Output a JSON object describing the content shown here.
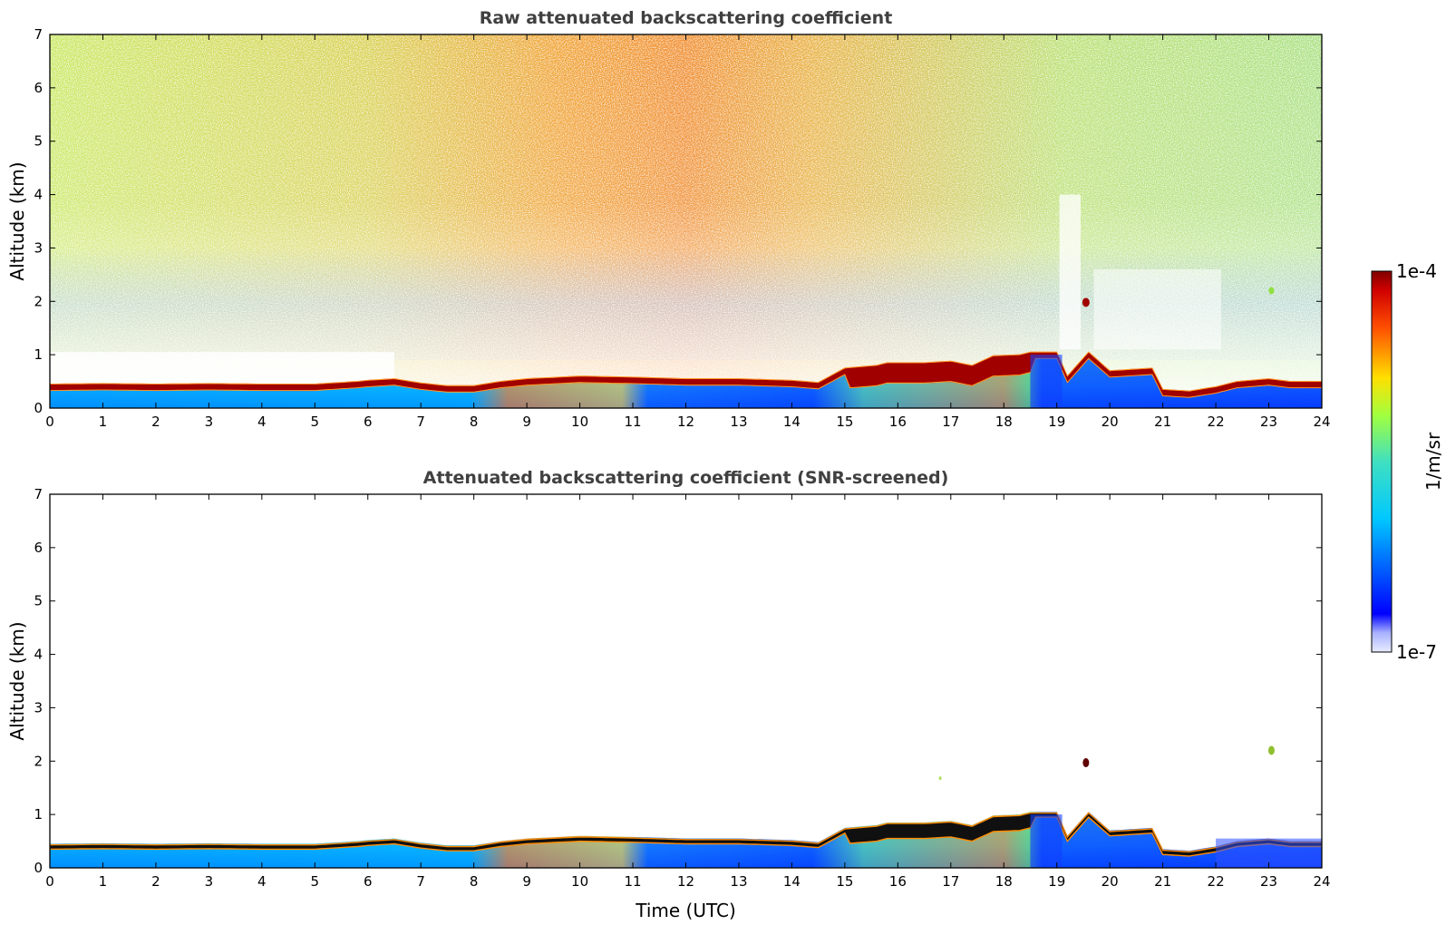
{
  "chart_data": [
    {
      "type": "heatmap",
      "title": "Raw attenuated backscattering coefficient",
      "xlabel": "",
      "ylabel": "Altitude (km)",
      "xlim": [
        0,
        24
      ],
      "ylim": [
        0,
        7
      ],
      "xticks": [
        "0",
        "1",
        "2",
        "3",
        "4",
        "5",
        "6",
        "7",
        "8",
        "9",
        "10",
        "11",
        "12",
        "13",
        "14",
        "15",
        "16",
        "17",
        "18",
        "19",
        "20",
        "21",
        "22",
        "23",
        "24"
      ],
      "yticks": [
        "0",
        "1",
        "2",
        "3",
        "4",
        "5",
        "6",
        "7"
      ],
      "layer_top_km": [
        [
          0,
          0.45
        ],
        [
          1,
          0.46
        ],
        [
          2,
          0.45
        ],
        [
          3,
          0.46
        ],
        [
          4,
          0.45
        ],
        [
          5,
          0.45
        ],
        [
          5.8,
          0.5
        ],
        [
          6,
          0.52
        ],
        [
          6.5,
          0.55
        ],
        [
          7,
          0.47
        ],
        [
          7.5,
          0.42
        ],
        [
          8,
          0.42
        ],
        [
          8.5,
          0.5
        ],
        [
          9,
          0.55
        ],
        [
          10,
          0.6
        ],
        [
          11,
          0.58
        ],
        [
          12,
          0.55
        ],
        [
          13,
          0.55
        ],
        [
          14,
          0.52
        ],
        [
          14.5,
          0.48
        ],
        [
          15,
          0.75
        ],
        [
          15.6,
          0.8
        ],
        [
          15.8,
          0.85
        ],
        [
          16.5,
          0.85
        ],
        [
          17,
          0.88
        ],
        [
          17.4,
          0.8
        ],
        [
          17.8,
          0.98
        ],
        [
          18.3,
          1.0
        ],
        [
          18.5,
          1.05
        ],
        [
          19.0,
          1.05
        ],
        [
          19.2,
          0.6
        ],
        [
          19.6,
          1.05
        ],
        [
          20.0,
          0.7
        ],
        [
          20.8,
          0.75
        ],
        [
          21.0,
          0.35
        ],
        [
          21.5,
          0.32
        ],
        [
          22,
          0.4
        ],
        [
          22.4,
          0.5
        ],
        [
          23,
          0.55
        ],
        [
          23.4,
          0.5
        ]
      ],
      "colorbar": {
        "min": "1e-7",
        "max": "1e-4",
        "label": "1/m/sr",
        "scale": "log",
        "colormap": "jet"
      }
    },
    {
      "type": "heatmap",
      "title": "Attenuated backscattering coefficient (SNR-screened)",
      "xlabel": "Time (UTC)",
      "ylabel": "Altitude (km)",
      "xlim": [
        0,
        24
      ],
      "ylim": [
        0,
        7
      ],
      "xticks": [
        "0",
        "1",
        "2",
        "3",
        "4",
        "5",
        "6",
        "7",
        "8",
        "9",
        "10",
        "11",
        "12",
        "13",
        "14",
        "15",
        "16",
        "17",
        "18",
        "19",
        "20",
        "21",
        "22",
        "23",
        "24"
      ],
      "yticks": [
        "0",
        "1",
        "2",
        "3",
        "4",
        "5",
        "6",
        "7"
      ],
      "isolated_features": [
        {
          "time": 19.55,
          "altitude_km": 1.97
        },
        {
          "time": 23.05,
          "altitude_km": 2.2
        },
        {
          "time": 16.8,
          "altitude_km": 1.68
        }
      ]
    }
  ]
}
